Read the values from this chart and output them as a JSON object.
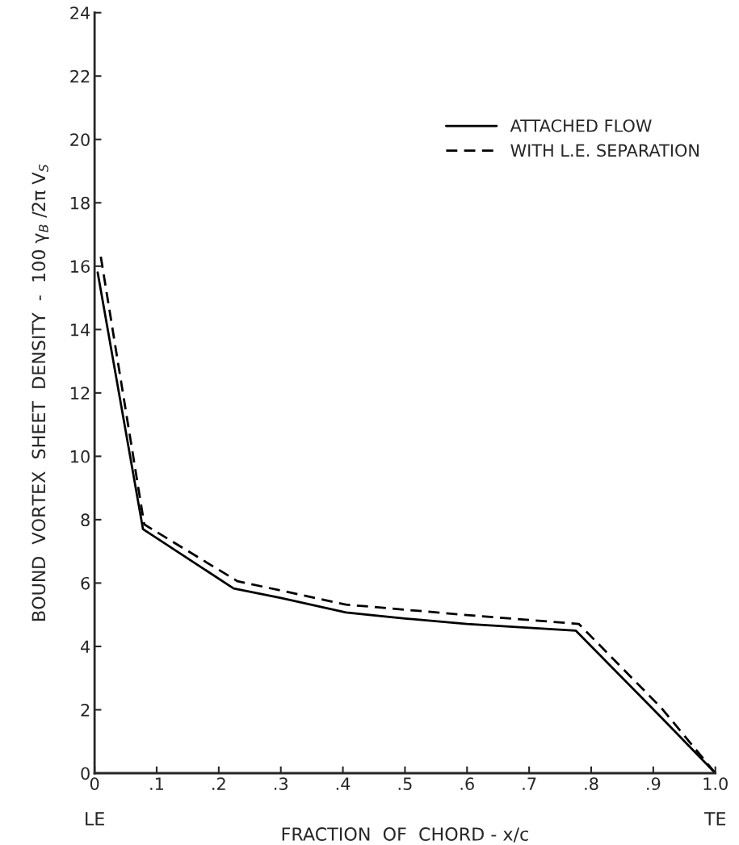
{
  "chart_data": {
    "type": "line",
    "xlabel": "FRACTION  OF  CHORD - x/c",
    "ylabel": "BOUND  VORTEX  SHEET  DENSITY  -  100 γ$_{B}$ /2π V$_{S}$",
    "annotations": [
      "LE",
      "TE"
    ],
    "series": [
      {
        "name": "ATTACHED FLOW",
        "color": "#000000",
        "line_style": "solid",
        "x": [
          0.005,
          0.078,
          0.224,
          0.3,
          0.405,
          0.5,
          0.6,
          0.7,
          0.775,
          0.913,
          1.0
        ],
        "values": [
          15.8,
          7.7,
          5.83,
          5.53,
          5.07,
          4.88,
          4.71,
          4.59,
          4.5,
          1.76,
          0
        ]
      },
      {
        "name": "WITH L.E. SEPARATION",
        "color": "#000000",
        "line_style": "dashed",
        "x": [
          0.01,
          0.08,
          0.23,
          0.405,
          0.6,
          0.78,
          0.913,
          1.0
        ],
        "values": [
          16.3,
          7.85,
          6.06,
          5.32,
          4.99,
          4.71,
          2.06,
          0
        ]
      }
    ],
    "xlim": [
      0,
      1.0
    ],
    "ylim": [
      0,
      24
    ],
    "xticks": [
      0,
      {
        "value": 0.1,
        "label": ".1"
      },
      {
        "value": 0.2,
        "label": ".2"
      },
      {
        "value": 0.3,
        "label": ".3"
      },
      {
        "value": 0.4,
        "label": ".4"
      },
      {
        "value": 0.5,
        "label": ".5"
      },
      {
        "value": 0.6,
        "label": ".6"
      },
      {
        "value": 0.7,
        "label": ".7"
      },
      {
        "value": 0.8,
        "label": ".8"
      },
      {
        "value": 0.9,
        "label": ".9"
      },
      {
        "value": 1.0,
        "label": "1.0"
      }
    ],
    "yticks": [
      0,
      2,
      4,
      6,
      8,
      10,
      12,
      14,
      16,
      18,
      20,
      22,
      24
    ],
    "grid": false,
    "legend": "top right",
    "marker": "none"
  }
}
